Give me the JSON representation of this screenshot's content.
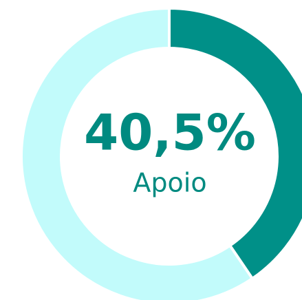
{
  "chart_data": {
    "type": "donut",
    "categories": [
      "Apoio",
      null
    ],
    "values": [
      40.5,
      59.5
    ],
    "value_labels": [
      "40,5%",
      null
    ],
    "colors": [
      "#009088",
      "#c2fbfb"
    ]
  }
}
